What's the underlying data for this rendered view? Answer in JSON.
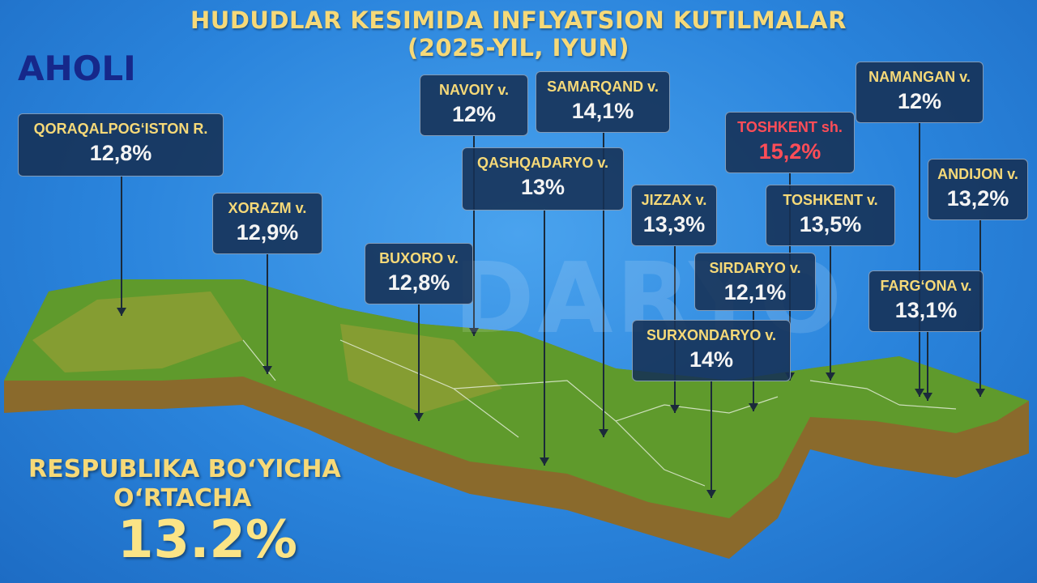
{
  "header": {
    "title_line1": "HUDUDLAR KESIMIDA INFLYATSION KUTILMALAR",
    "title_line2": "(2025-YIL, IYUN)",
    "tag": "AHOLI"
  },
  "watermark": "DARYO",
  "regions": [
    {
      "name": "QORAQALPOG‘ISTON R.",
      "value": "12,8%"
    },
    {
      "name": "XORAZM v.",
      "value": "12,9%"
    },
    {
      "name": "NAVOIY v.",
      "value": "12%"
    },
    {
      "name": "SAMARQAND v.",
      "value": "14,1%"
    },
    {
      "name": "QASHQADARYO v.",
      "value": "13%"
    },
    {
      "name": "BUXORO v.",
      "value": "12,8%"
    },
    {
      "name": "JIZZAX v.",
      "value": "13,3%"
    },
    {
      "name": "TOSHKENT sh.",
      "value": "15,2%"
    },
    {
      "name": "TOSHKENT v.",
      "value": "13,5%"
    },
    {
      "name": "SIRDARYO v.",
      "value": "12,1%"
    },
    {
      "name": "SURXONDARYO v.",
      "value": "14%"
    },
    {
      "name": "NAMANGAN v.",
      "value": "12%"
    },
    {
      "name": "ANDIJON v.",
      "value": "13,2%"
    },
    {
      "name": "FARG‘ONA v.",
      "value": "13,1%"
    }
  ],
  "summary": {
    "line1": "RESPUBLIKA BO‘YICHA",
    "line2": "O‘RTACHA",
    "value": "13.2%"
  }
}
